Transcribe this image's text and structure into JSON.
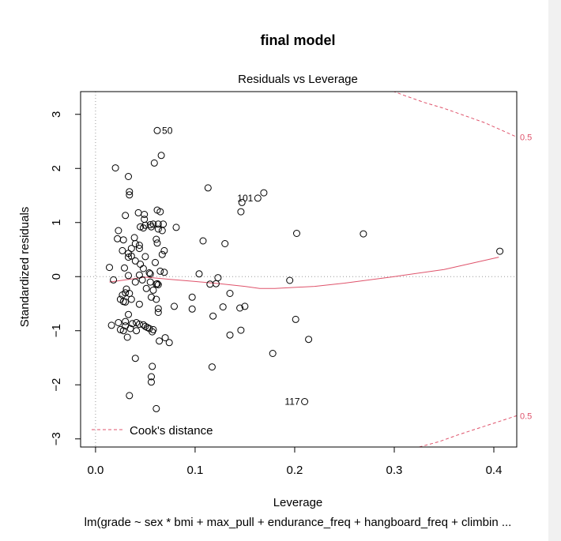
{
  "chart_data": {
    "type": "scatter",
    "title": "final model",
    "subtitle": "Residuals vs Leverage",
    "xlabel": "Leverage",
    "ylabel": "Standardized residuals",
    "caption": "lm(grade ~ sex * bmi + max_pull + endurance_freq + hangboard_freq + climbin ...",
    "xlim": [
      -0.015,
      0.423
    ],
    "ylim": [
      -3.15,
      3.42
    ],
    "x_ticks": [
      0.0,
      0.1,
      0.2,
      0.3,
      0.4
    ],
    "x_tick_labels": [
      "0.0",
      "0.1",
      "0.2",
      "0.3",
      "0.4"
    ],
    "y_ticks": [
      -3,
      -2,
      -1,
      0,
      1,
      2,
      3
    ],
    "y_tick_labels": [
      "−3",
      "−2",
      "−1",
      "0",
      "1",
      "2",
      "3"
    ],
    "colors": {
      "points": "#000000",
      "smoother": "#df536b",
      "cook": "#df536b",
      "reference": "#999999"
    },
    "legend": {
      "position": "bottom-left",
      "label": "Cook's distance"
    },
    "cook_contours": [
      {
        "level": 0.5,
        "label": "0.5",
        "side": "upper",
        "points": [
          [
            0.288,
            3.5
          ],
          [
            0.31,
            3.35
          ],
          [
            0.33,
            3.22
          ],
          [
            0.35,
            3.11
          ],
          [
            0.37,
            2.98
          ],
          [
            0.39,
            2.85
          ],
          [
            0.405,
            2.73
          ],
          [
            0.423,
            2.58
          ]
        ]
      },
      {
        "level": 0.5,
        "label": "0.5",
        "side": "lower",
        "points": [
          [
            0.325,
            -3.15
          ],
          [
            0.345,
            -3.05
          ],
          [
            0.365,
            -2.92
          ],
          [
            0.385,
            -2.8
          ],
          [
            0.405,
            -2.68
          ],
          [
            0.423,
            -2.57
          ]
        ]
      }
    ],
    "smoother": [
      [
        0.014,
        -0.1
      ],
      [
        0.03,
        -0.06
      ],
      [
        0.05,
        -0.01
      ],
      [
        0.075,
        -0.05
      ],
      [
        0.1,
        -0.09
      ],
      [
        0.125,
        -0.13
      ],
      [
        0.15,
        -0.18
      ],
      [
        0.165,
        -0.22
      ],
      [
        0.18,
        -0.22
      ],
      [
        0.2,
        -0.2
      ],
      [
        0.22,
        -0.18
      ],
      [
        0.25,
        -0.12
      ],
      [
        0.3,
        0.0
      ],
      [
        0.35,
        0.13
      ],
      [
        0.405,
        0.36
      ]
    ],
    "points": [
      [
        0.062,
        2.7
      ],
      [
        0.066,
        2.24
      ],
      [
        0.059,
        2.1
      ],
      [
        0.02,
        2.01
      ],
      [
        0.033,
        1.85
      ],
      [
        0.034,
        1.57
      ],
      [
        0.034,
        1.51
      ],
      [
        0.113,
        1.64
      ],
      [
        0.169,
        1.55
      ],
      [
        0.163,
        1.45
      ],
      [
        0.147,
        1.37
      ],
      [
        0.146,
        1.2
      ],
      [
        0.03,
        1.13
      ],
      [
        0.043,
        1.18
      ],
      [
        0.049,
        1.15
      ],
      [
        0.062,
        1.23
      ],
      [
        0.065,
        1.2
      ],
      [
        0.049,
        1.06
      ],
      [
        0.058,
        0.97
      ],
      [
        0.068,
        0.97
      ],
      [
        0.063,
        0.97
      ],
      [
        0.055,
        0.96
      ],
      [
        0.056,
        0.92
      ],
      [
        0.045,
        0.92
      ],
      [
        0.048,
        0.9
      ],
      [
        0.05,
        0.95
      ],
      [
        0.023,
        0.85
      ],
      [
        0.081,
        0.91
      ],
      [
        0.063,
        0.88
      ],
      [
        0.067,
        0.85
      ],
      [
        0.202,
        0.8
      ],
      [
        0.269,
        0.79
      ],
      [
        0.022,
        0.7
      ],
      [
        0.028,
        0.68
      ],
      [
        0.039,
        0.72
      ],
      [
        0.061,
        0.69
      ],
      [
        0.062,
        0.62
      ],
      [
        0.04,
        0.61
      ],
      [
        0.044,
        0.58
      ],
      [
        0.108,
        0.66
      ],
      [
        0.13,
        0.61
      ],
      [
        0.036,
        0.52
      ],
      [
        0.044,
        0.52
      ],
      [
        0.027,
        0.48
      ],
      [
        0.033,
        0.43
      ],
      [
        0.036,
        0.38
      ],
      [
        0.033,
        0.36
      ],
      [
        0.069,
        0.48
      ],
      [
        0.067,
        0.41
      ],
      [
        0.05,
        0.37
      ],
      [
        0.04,
        0.29
      ],
      [
        0.06,
        0.26
      ],
      [
        0.045,
        0.23
      ],
      [
        0.014,
        0.17
      ],
      [
        0.029,
        0.16
      ],
      [
        0.048,
        0.15
      ],
      [
        0.065,
        0.1
      ],
      [
        0.069,
        0.08
      ],
      [
        0.054,
        0.07
      ],
      [
        0.055,
        0.05
      ],
      [
        0.104,
        0.05
      ],
      [
        0.044,
        0.03
      ],
      [
        0.033,
        0.02
      ],
      [
        0.406,
        0.47
      ],
      [
        0.018,
        -0.06
      ],
      [
        0.047,
        -0.06
      ],
      [
        0.04,
        -0.1
      ],
      [
        0.055,
        -0.1
      ],
      [
        0.061,
        -0.14
      ],
      [
        0.062,
        -0.13
      ],
      [
        0.063,
        -0.15
      ],
      [
        0.031,
        -0.23
      ],
      [
        0.051,
        -0.22
      ],
      [
        0.058,
        -0.25
      ],
      [
        0.03,
        -0.3
      ],
      [
        0.121,
        -0.13
      ],
      [
        0.115,
        -0.14
      ],
      [
        0.123,
        -0.02
      ],
      [
        0.195,
        -0.07
      ],
      [
        0.027,
        -0.34
      ],
      [
        0.034,
        -0.31
      ],
      [
        0.025,
        -0.42
      ],
      [
        0.028,
        -0.46
      ],
      [
        0.036,
        -0.42
      ],
      [
        0.03,
        -0.47
      ],
      [
        0.056,
        -0.38
      ],
      [
        0.061,
        -0.42
      ],
      [
        0.097,
        -0.38
      ],
      [
        0.135,
        -0.31
      ],
      [
        0.044,
        -0.51
      ],
      [
        0.079,
        -0.55
      ],
      [
        0.063,
        -0.59
      ],
      [
        0.097,
        -0.6
      ],
      [
        0.128,
        -0.56
      ],
      [
        0.145,
        -0.58
      ],
      [
        0.15,
        -0.55
      ],
      [
        0.033,
        -0.7
      ],
      [
        0.063,
        -0.66
      ],
      [
        0.118,
        -0.73
      ],
      [
        0.201,
        -0.79
      ],
      [
        0.023,
        -0.85
      ],
      [
        0.03,
        -0.83
      ],
      [
        0.041,
        -0.85
      ],
      [
        0.037,
        -0.87
      ],
      [
        0.044,
        -0.88
      ],
      [
        0.048,
        -0.89
      ],
      [
        0.016,
        -0.9
      ],
      [
        0.03,
        -0.91
      ],
      [
        0.05,
        -0.92
      ],
      [
        0.052,
        -0.94
      ],
      [
        0.035,
        -0.96
      ],
      [
        0.054,
        -0.96
      ],
      [
        0.058,
        -0.98
      ],
      [
        0.057,
        -1.02
      ],
      [
        0.025,
        -0.98
      ],
      [
        0.028,
        -1.0
      ],
      [
        0.041,
        -1.0
      ],
      [
        0.146,
        -0.99
      ],
      [
        0.135,
        -1.08
      ],
      [
        0.032,
        -1.12
      ],
      [
        0.07,
        -1.13
      ],
      [
        0.064,
        -1.19
      ],
      [
        0.074,
        -1.22
      ],
      [
        0.214,
        -1.16
      ],
      [
        0.178,
        -1.42
      ],
      [
        0.04,
        -1.51
      ],
      [
        0.057,
        -1.66
      ],
      [
        0.117,
        -1.67
      ],
      [
        0.056,
        -1.85
      ],
      [
        0.056,
        -1.95
      ],
      [
        0.034,
        -2.2
      ],
      [
        0.061,
        -2.44
      ],
      [
        0.21,
        -2.31
      ]
    ],
    "labels": [
      {
        "text": "50",
        "x": 0.062,
        "y": 2.7,
        "side": "right"
      },
      {
        "text": "101",
        "x": 0.163,
        "y": 1.45,
        "side": "left"
      },
      {
        "text": "117",
        "x": 0.21,
        "y": -2.31,
        "side": "left"
      }
    ]
  }
}
